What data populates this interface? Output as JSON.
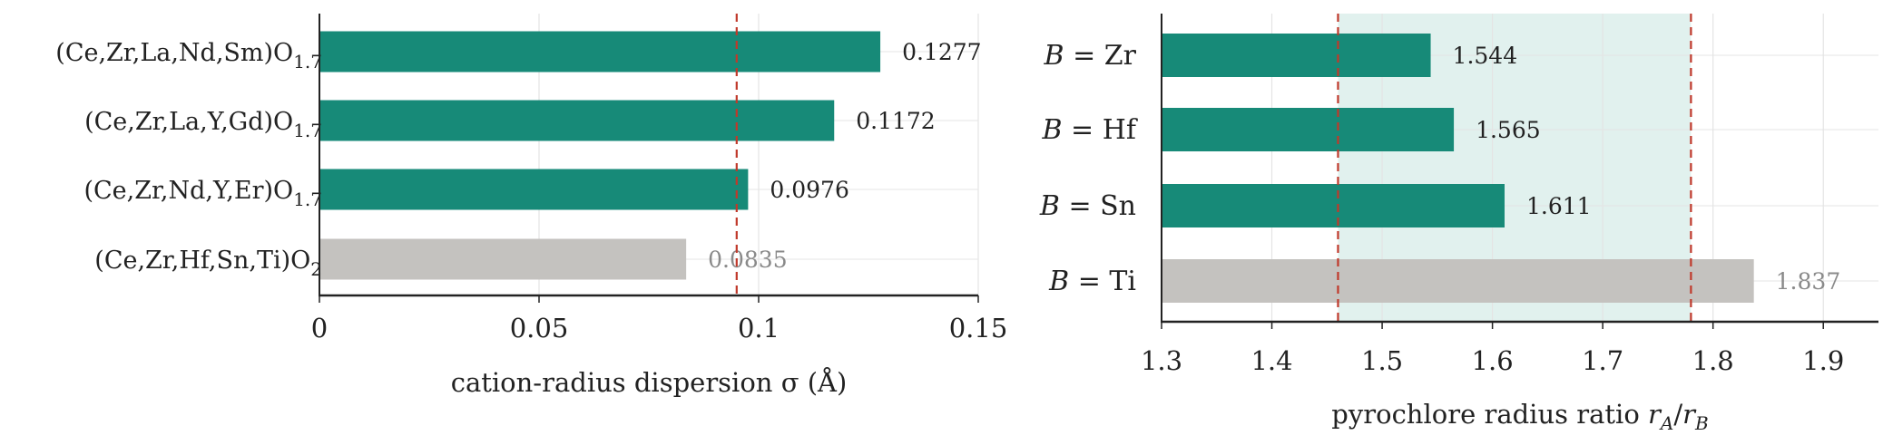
{
  "colors": {
    "primary_bar": "#178a78",
    "muted_bar": "#c4c2bf",
    "reference_line": "#c0392b",
    "band_fill": "#e1f1ee",
    "axis": "#222222",
    "grid": "#e4e4e4",
    "text": "#222222",
    "muted_text": "#8a8a8a"
  },
  "chart_data": [
    {
      "type": "bar",
      "orientation": "horizontal",
      "categories": [
        {
          "base": "(Ce,Zr,La,Nd,Sm)O",
          "sub": "1.7"
        },
        {
          "base": "(Ce,Zr,La,Y,Gd)O",
          "sub": "1.7"
        },
        {
          "base": "(Ce,Zr,Nd,Y,Er)O",
          "sub": "1.7"
        },
        {
          "base": "(Ce,Zr,Hf,Sn,Ti)O",
          "sub": "2"
        }
      ],
      "values": [
        0.1277,
        0.1172,
        0.0976,
        0.0835
      ],
      "value_labels": [
        "0.1277",
        "0.1172",
        "0.0976",
        "0.0835"
      ],
      "muted": [
        false,
        false,
        false,
        true
      ],
      "xlabel": "cation-radius dispersion σ  (Å)",
      "xlim": [
        0,
        0.15
      ],
      "xticks": [
        0,
        0.05,
        0.1,
        0.15
      ],
      "xtick_labels": [
        "0",
        "0.05",
        "0.1",
        "0.15"
      ],
      "reference_lines": [
        0.095
      ],
      "grid": "vertical"
    },
    {
      "type": "bar",
      "orientation": "horizontal",
      "categories": [
        {
          "italic": "B",
          "rest": " = Zr"
        },
        {
          "italic": "B",
          "rest": " = Hf"
        },
        {
          "italic": "B",
          "rest": " = Sn"
        },
        {
          "italic": "B",
          "rest": " = Ti"
        }
      ],
      "values": [
        1.544,
        1.565,
        1.611,
        1.837
      ],
      "value_labels": [
        "1.544",
        "1.565",
        "1.611",
        "1.837"
      ],
      "muted": [
        false,
        false,
        false,
        true
      ],
      "xlabel": "pyrochlore radius ratio",
      "xlabel_math": {
        "r1": "r",
        "s1": "A",
        "slash": "/",
        "r2": "r",
        "s2": "B"
      },
      "xlim": [
        1.3,
        1.95
      ],
      "xticks": [
        1.3,
        1.4,
        1.5,
        1.6,
        1.7,
        1.8,
        1.9
      ],
      "xtick_labels": [
        "1.3",
        "1.4",
        "1.5",
        "1.6",
        "1.7",
        "1.8",
        "1.9"
      ],
      "reference_lines": [
        1.46,
        1.78
      ],
      "shaded_band": [
        1.46,
        1.78
      ],
      "grid": "vertical"
    }
  ]
}
